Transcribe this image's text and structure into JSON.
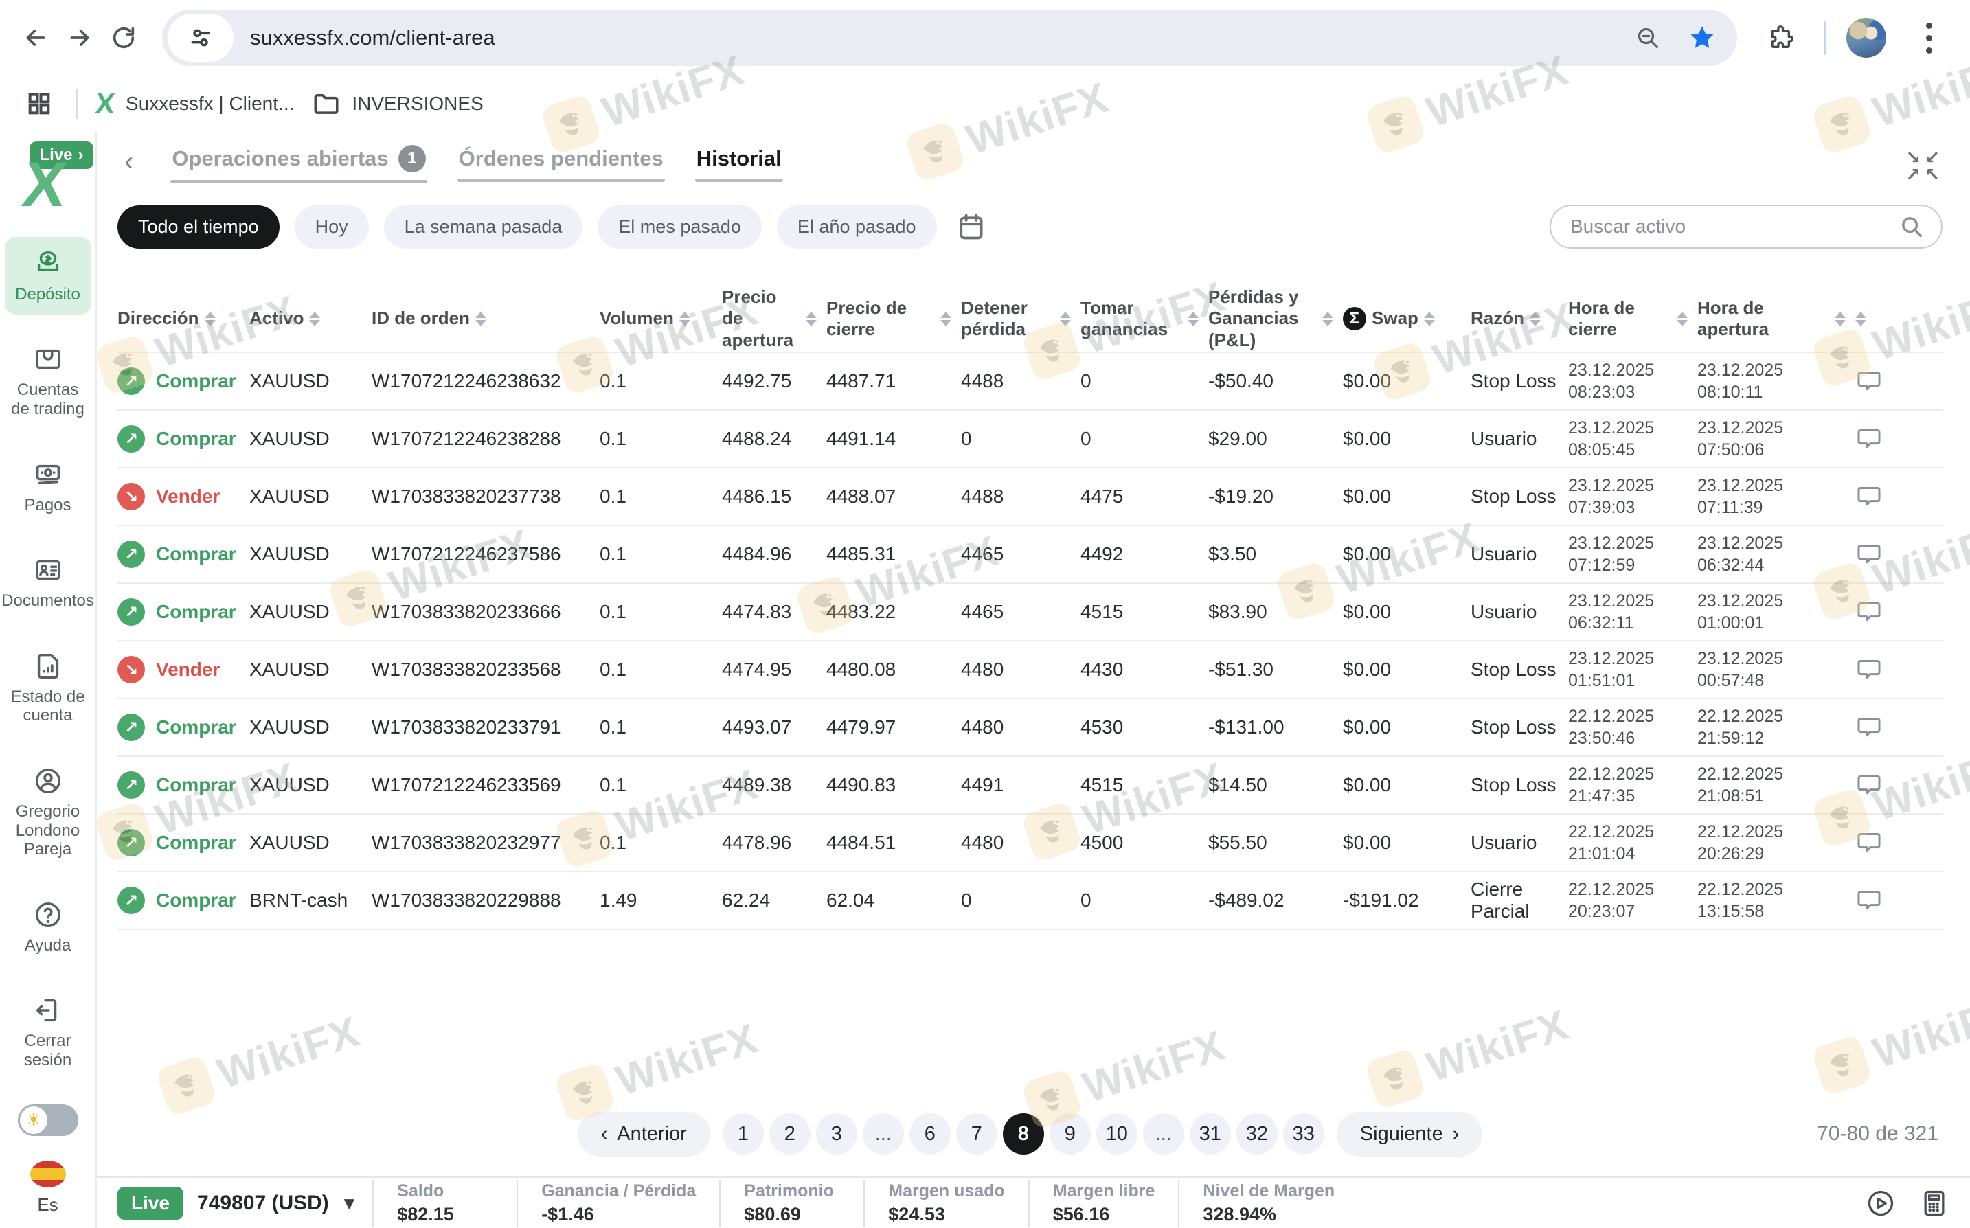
{
  "browser": {
    "url": "suxxessfx.com/client-area",
    "bookmarks": [
      {
        "label": "Suxxessfx | Client..."
      },
      {
        "label": "INVERSIONES"
      }
    ]
  },
  "sidebar": {
    "live_badge": "Live",
    "items": [
      {
        "label": "Depósito",
        "icon": "deposit-icon",
        "active": true
      },
      {
        "label": "Cuentas de trading",
        "icon": "wallet-icon",
        "active": false
      },
      {
        "label": "Pagos",
        "icon": "banknote-icon",
        "active": false
      },
      {
        "label": "Documentos",
        "icon": "id-card-icon",
        "active": false
      },
      {
        "label": "Estado de cuenta",
        "icon": "statement-icon",
        "active": false
      }
    ],
    "bottom_items": [
      {
        "label": "Gregorio Londono Pareja",
        "icon": "user-icon"
      },
      {
        "label": "Ayuda",
        "icon": "help-icon"
      },
      {
        "label": "Cerrar sesión",
        "icon": "logout-icon"
      }
    ],
    "language": "Es"
  },
  "tabs": [
    {
      "label": "Operaciones abiertas",
      "badge": "1",
      "active": false
    },
    {
      "label": "Órdenes pendientes",
      "badge": "",
      "active": false
    },
    {
      "label": "Historial",
      "badge": "",
      "active": true
    }
  ],
  "filters": {
    "chips": [
      "Todo el tiempo",
      "Hoy",
      "La semana pasada",
      "El mes pasado",
      "El año pasado"
    ],
    "active_chip": "Todo el tiempo",
    "search_placeholder": "Buscar activo"
  },
  "table": {
    "columns": [
      {
        "label": "Dirección"
      },
      {
        "label": "Activo"
      },
      {
        "label": "ID de orden"
      },
      {
        "label": "Volumen"
      },
      {
        "label": "Precio de apertura"
      },
      {
        "label": "Precio de cierre"
      },
      {
        "label": "Detener pérdida"
      },
      {
        "label": "Tomar ganancias"
      },
      {
        "label": "Pérdidas y Ganancias (P&L)"
      },
      {
        "label": "Swap",
        "badge": "Σ"
      },
      {
        "label": "Razón"
      },
      {
        "label": "Hora de cierre"
      },
      {
        "label": "Hora de apertura"
      },
      {
        "label": ""
      }
    ],
    "rows": [
      {
        "direction": "Comprar",
        "side": "buy",
        "asset": "XAUUSD",
        "order_id": "W1707212246238632",
        "volume": "0.1",
        "open_price": "4492.75",
        "close_price": "4487.71",
        "stop_loss": "4488",
        "take_profit": "0",
        "pnl": "-$50.40",
        "swap": "$0.00",
        "reason": "Stop Loss",
        "close_time": "23.12.2025 08:23:03",
        "open_time": "23.12.2025 08:10:11"
      },
      {
        "direction": "Comprar",
        "side": "buy",
        "asset": "XAUUSD",
        "order_id": "W1707212246238288",
        "volume": "0.1",
        "open_price": "4488.24",
        "close_price": "4491.14",
        "stop_loss": "0",
        "take_profit": "0",
        "pnl": "$29.00",
        "swap": "$0.00",
        "reason": "Usuario",
        "close_time": "23.12.2025 08:05:45",
        "open_time": "23.12.2025 07:50:06"
      },
      {
        "direction": "Vender",
        "side": "sell",
        "asset": "XAUUSD",
        "order_id": "W1703833820237738",
        "volume": "0.1",
        "open_price": "4486.15",
        "close_price": "4488.07",
        "stop_loss": "4488",
        "take_profit": "4475",
        "pnl": "-$19.20",
        "swap": "$0.00",
        "reason": "Stop Loss",
        "close_time": "23.12.2025 07:39:03",
        "open_time": "23.12.2025 07:11:39"
      },
      {
        "direction": "Comprar",
        "side": "buy",
        "asset": "XAUUSD",
        "order_id": "W1707212246237586",
        "volume": "0.1",
        "open_price": "4484.96",
        "close_price": "4485.31",
        "stop_loss": "4465",
        "take_profit": "4492",
        "pnl": "$3.50",
        "swap": "$0.00",
        "reason": "Usuario",
        "close_time": "23.12.2025 07:12:59",
        "open_time": "23.12.2025 06:32:44"
      },
      {
        "direction": "Comprar",
        "side": "buy",
        "asset": "XAUUSD",
        "order_id": "W1703833820233666",
        "volume": "0.1",
        "open_price": "4474.83",
        "close_price": "4483.22",
        "stop_loss": "4465",
        "take_profit": "4515",
        "pnl": "$83.90",
        "swap": "$0.00",
        "reason": "Usuario",
        "close_time": "23.12.2025 06:32:11",
        "open_time": "23.12.2025 01:00:01"
      },
      {
        "direction": "Vender",
        "side": "sell",
        "asset": "XAUUSD",
        "order_id": "W1703833820233568",
        "volume": "0.1",
        "open_price": "4474.95",
        "close_price": "4480.08",
        "stop_loss": "4480",
        "take_profit": "4430",
        "pnl": "-$51.30",
        "swap": "$0.00",
        "reason": "Stop Loss",
        "close_time": "23.12.2025 01:51:01",
        "open_time": "23.12.2025 00:57:48"
      },
      {
        "direction": "Comprar",
        "side": "buy",
        "asset": "XAUUSD",
        "order_id": "W1703833820233791",
        "volume": "0.1",
        "open_price": "4493.07",
        "close_price": "4479.97",
        "stop_loss": "4480",
        "take_profit": "4530",
        "pnl": "-$131.00",
        "swap": "$0.00",
        "reason": "Stop Loss",
        "close_time": "22.12.2025 23:50:46",
        "open_time": "22.12.2025 21:59:12"
      },
      {
        "direction": "Comprar",
        "side": "buy",
        "asset": "XAUUSD",
        "order_id": "W1707212246233569",
        "volume": "0.1",
        "open_price": "4489.38",
        "close_price": "4490.83",
        "stop_loss": "4491",
        "take_profit": "4515",
        "pnl": "$14.50",
        "swap": "$0.00",
        "reason": "Stop Loss",
        "close_time": "22.12.2025 21:47:35",
        "open_time": "22.12.2025 21:08:51"
      },
      {
        "direction": "Comprar",
        "side": "buy",
        "asset": "XAUUSD",
        "order_id": "W1703833820232977",
        "volume": "0.1",
        "open_price": "4478.96",
        "close_price": "4484.51",
        "stop_loss": "4480",
        "take_profit": "4500",
        "pnl": "$55.50",
        "swap": "$0.00",
        "reason": "Usuario",
        "close_time": "22.12.2025 21:01:04",
        "open_time": "22.12.2025 20:26:29"
      },
      {
        "direction": "Comprar",
        "side": "buy",
        "asset": "BRNT-cash",
        "order_id": "W1703833820229888",
        "volume": "1.49",
        "open_price": "62.24",
        "close_price": "62.04",
        "stop_loss": "0",
        "take_profit": "0",
        "pnl": "-$489.02",
        "swap": "-$191.02",
        "reason": "Cierre Parcial",
        "close_time": "22.12.2025 20:23:07",
        "open_time": "22.12.2025 13:15:58"
      }
    ]
  },
  "pagination": {
    "prev": "Anterior",
    "next": "Siguiente",
    "pages": [
      "1",
      "2",
      "3",
      "...",
      "6",
      "7",
      "8",
      "9",
      "10",
      "...",
      "31",
      "32",
      "33"
    ],
    "active_page": "8",
    "range_label": "70-80 de 321"
  },
  "account_bar": {
    "mode": "Live",
    "account": "749807 (USD)",
    "stats": [
      {
        "label": "Saldo",
        "value": "$82.15"
      },
      {
        "label": "Ganancia / Pérdida",
        "value": "-$1.46"
      },
      {
        "label": "Patrimonio",
        "value": "$80.69"
      },
      {
        "label": "Margen usado",
        "value": "$24.53"
      },
      {
        "label": "Margen libre",
        "value": "$56.16"
      },
      {
        "label": "Nivel de Margen",
        "value": "328.94%"
      }
    ]
  },
  "watermark": {
    "text": "WikiFX"
  },
  "colors": {
    "buy_green": "#3f9e63",
    "sell_red": "#d9534f",
    "live_badge_green": "#3f9e63",
    "active_chip_black": "#17181a",
    "sidebar_active_bg": "#d9f0e2",
    "bookmark_star_blue": "#1a73e8"
  }
}
